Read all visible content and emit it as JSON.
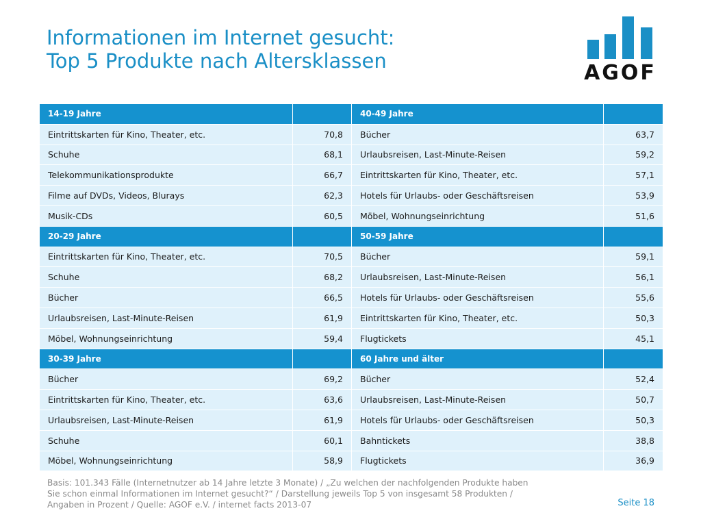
{
  "title": {
    "line1": "Informationen im Internet gesucht:",
    "line2": "Top 5 Produkte nach Altersklassen"
  },
  "logo": {
    "text": "AGOF",
    "color": "#1a8fc6"
  },
  "colors": {
    "header_bg": "#1592cf",
    "row_bg": "#dff1fb",
    "accent": "#1a8fc6"
  },
  "table": {
    "blocks": [
      {
        "left": {
          "header": "14-19 Jahre",
          "rows": [
            {
              "label": "Eintrittskarten für Kino, Theater, etc.",
              "value": "70,8"
            },
            {
              "label": "Schuhe",
              "value": "68,1"
            },
            {
              "label": "Telekommunikationsprodukte",
              "value": "66,7"
            },
            {
              "label": "Filme auf DVDs, Videos, Blurays",
              "value": "62,3"
            },
            {
              "label": "Musik-CDs",
              "value": "60,5"
            }
          ]
        },
        "right": {
          "header": "40-49 Jahre",
          "rows": [
            {
              "label": "Bücher",
              "value": "63,7"
            },
            {
              "label": "Urlaubsreisen, Last-Minute-Reisen",
              "value": "59,2"
            },
            {
              "label": "Eintrittskarten für Kino, Theater, etc.",
              "value": "57,1"
            },
            {
              "label": "Hotels für Urlaubs- oder Geschäftsreisen",
              "value": "53,9"
            },
            {
              "label": "Möbel, Wohnungseinrichtung",
              "value": "51,6"
            }
          ]
        }
      },
      {
        "left": {
          "header": "20-29 Jahre",
          "rows": [
            {
              "label": "Eintrittskarten für Kino, Theater, etc.",
              "value": "70,5"
            },
            {
              "label": "Schuhe",
              "value": "68,2"
            },
            {
              "label": "Bücher",
              "value": "66,5"
            },
            {
              "label": "Urlaubsreisen, Last-Minute-Reisen",
              "value": "61,9"
            },
            {
              "label": "Möbel, Wohnungseinrichtung",
              "value": "59,4"
            }
          ]
        },
        "right": {
          "header": "50-59 Jahre",
          "rows": [
            {
              "label": "Bücher",
              "value": "59,1"
            },
            {
              "label": "Urlaubsreisen, Last-Minute-Reisen",
              "value": "56,1"
            },
            {
              "label": "Hotels für Urlaubs- oder Geschäftsreisen",
              "value": "55,6"
            },
            {
              "label": "Eintrittskarten für Kino, Theater, etc.",
              "value": "50,3"
            },
            {
              "label": "Flugtickets",
              "value": "45,1"
            }
          ]
        }
      },
      {
        "left": {
          "header": "30-39 Jahre",
          "rows": [
            {
              "label": "Bücher",
              "value": "69,2"
            },
            {
              "label": "Eintrittskarten für Kino, Theater, etc.",
              "value": "63,6"
            },
            {
              "label": "Urlaubsreisen, Last-Minute-Reisen",
              "value": "61,9"
            },
            {
              "label": "Schuhe",
              "value": "60,1"
            },
            {
              "label": "Möbel, Wohnungseinrichtung",
              "value": "58,9"
            }
          ]
        },
        "right": {
          "header": "60 Jahre und älter",
          "rows": [
            {
              "label": "Bücher",
              "value": "52,4"
            },
            {
              "label": "Urlaubsreisen, Last-Minute-Reisen",
              "value": "50,7"
            },
            {
              "label": "Hotels für Urlaubs- oder Geschäftsreisen",
              "value": "50,3"
            },
            {
              "label": "Bahntickets",
              "value": "38,8"
            },
            {
              "label": "Flugtickets",
              "value": "36,9"
            }
          ]
        }
      }
    ]
  },
  "footer": {
    "line1": "Basis: 101.343 Fälle (Internetnutzer ab 14 Jahre letzte 3 Monate) / „Zu welchen der nachfolgenden Produkte haben",
    "line2": "Sie schon einmal Informationen im Internet gesucht?“ / Darstellung jeweils Top 5 von insgesamt 58 Produkten /",
    "line3": "Angaben in Prozent / Quelle: AGOF e.V. / internet facts 2013-07"
  },
  "page_number": "Seite 18"
}
